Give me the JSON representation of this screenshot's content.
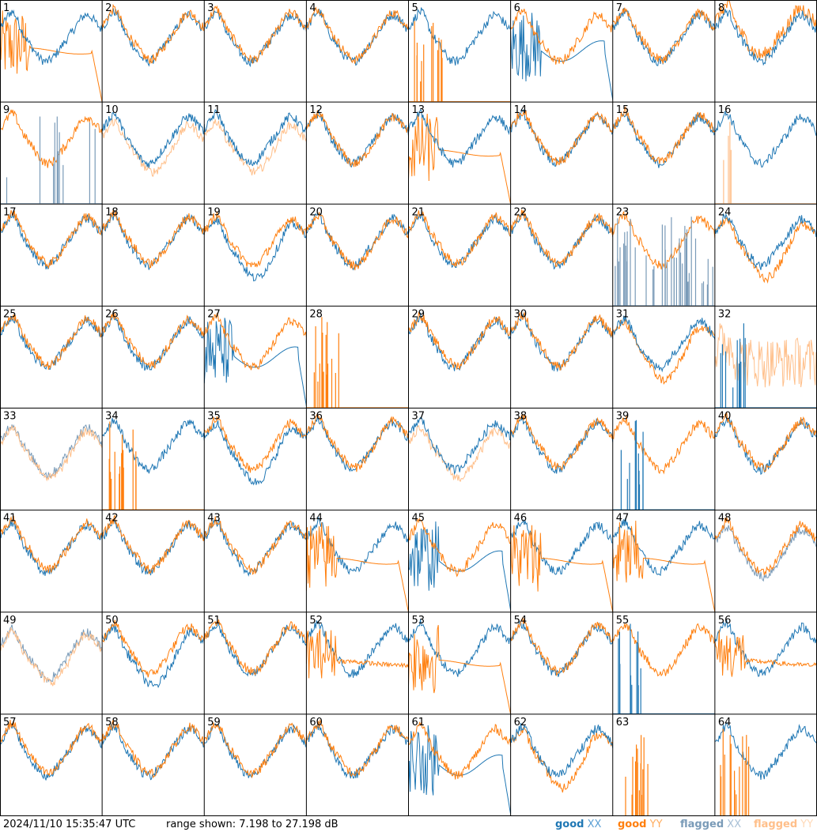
{
  "chart_data": {
    "type": "line",
    "layout": "small-multiples",
    "grid": "8x8",
    "panel_labels": [
      "1",
      "2",
      "3",
      "4",
      "5",
      "6",
      "7",
      "8",
      "9",
      "10",
      "11",
      "12",
      "13",
      "14",
      "15",
      "16",
      "17",
      "18",
      "19",
      "20",
      "21",
      "22",
      "23",
      "24",
      "25",
      "26",
      "27",
      "28",
      "29",
      "30",
      "31",
      "32",
      "33",
      "34",
      "35",
      "36",
      "37",
      "38",
      "39",
      "40",
      "41",
      "42",
      "43",
      "44",
      "45",
      "46",
      "47",
      "48",
      "49",
      "50",
      "51",
      "52",
      "53",
      "54",
      "55",
      "56",
      "57",
      "58",
      "59",
      "60",
      "61",
      "62",
      "63",
      "64"
    ],
    "ylim": [
      7.198,
      27.198
    ],
    "yunit": "dB",
    "series_styles": {
      "good_xx": {
        "name": "good XX",
        "color": "#1f77b4"
      },
      "good_yy": {
        "name": "good YY",
        "color": "#ff7f0e"
      },
      "flagged_xx": {
        "name": "flagged XX",
        "color": "#7a9bb8"
      },
      "flagged_yy": {
        "name": "flagged YY",
        "color": "#ffbf8a"
      }
    },
    "panel_types": {
      "1": [
        "yyDrop",
        "xx"
      ],
      "2": [
        "normal"
      ],
      "3": [
        "normal"
      ],
      "4": [
        "normal"
      ],
      "5": [
        "xx",
        "yySpike"
      ],
      "6": [
        "xxDrop",
        "yy"
      ],
      "7": [
        "normal"
      ],
      "8": [
        "yyHigh",
        "xx"
      ],
      "9": [
        "yy",
        "fxxSpike"
      ],
      "10": [
        "fyy",
        "xx"
      ],
      "11": [
        "fyy",
        "xx"
      ],
      "12": [
        "xx",
        "yy"
      ],
      "13": [
        "yyDrop",
        "xx"
      ],
      "14": [
        "normal"
      ],
      "15": [
        "normal"
      ],
      "16": [
        "xx",
        "fyySpike"
      ],
      "17": [
        "normal"
      ],
      "18": [
        "normal"
      ],
      "19": [
        "xxLow",
        "yy"
      ],
      "20": [
        "xx",
        "yy"
      ],
      "21": [
        "normal"
      ],
      "22": [
        "normal"
      ],
      "23": [
        "yy",
        "fxxNoise"
      ],
      "24": [
        "yyLow",
        "xx"
      ],
      "25": [
        "normal"
      ],
      "26": [
        "normal"
      ],
      "27": [
        "xxDrop",
        "yy"
      ],
      "28": [
        "yySpike"
      ],
      "29": [
        "normal"
      ],
      "30": [
        "normal"
      ],
      "31": [
        "yyLow",
        "xx"
      ],
      "32": [
        "fyyNoise",
        "xxSpike"
      ],
      "33": [
        "fxx",
        "fyy"
      ],
      "34": [
        "xx",
        "yySpike"
      ],
      "35": [
        "xxLow",
        "yy"
      ],
      "36": [
        "normal"
      ],
      "37": [
        "fyy",
        "xx"
      ],
      "38": [
        "normal"
      ],
      "39": [
        "yy",
        "xxSpike"
      ],
      "40": [
        "normal"
      ],
      "41": [
        "normal"
      ],
      "42": [
        "normal"
      ],
      "43": [
        "normal"
      ],
      "44": [
        "xx",
        "yyDrop"
      ],
      "45": [
        "xxDrop2",
        "yy"
      ],
      "46": [
        "xx",
        "yyDrop"
      ],
      "47": [
        "xx",
        "yyDrop"
      ],
      "48": [
        "fxx",
        "yy"
      ],
      "49": [
        "fxx",
        "fyy"
      ],
      "50": [
        "xxLow",
        "yy"
      ],
      "51": [
        "normal"
      ],
      "52": [
        "xx",
        "yyFlat"
      ],
      "53": [
        "xx",
        "yyDrop"
      ],
      "54": [
        "normal"
      ],
      "55": [
        "yy",
        "xxSpike"
      ],
      "56": [
        "xx",
        "yyFlat"
      ],
      "57": [
        "normal"
      ],
      "58": [
        "normal"
      ],
      "59": [
        "normal"
      ],
      "60": [
        "normal"
      ],
      "61": [
        "xxDrop",
        "yy"
      ],
      "62": [
        "yyLow",
        "xx"
      ],
      "63": [
        "yySpike"
      ],
      "64": [
        "xx",
        "yySpike"
      ]
    }
  },
  "footer": {
    "timestamp": "2024/11/10 15:35:47 UTC",
    "range": "range shown: 7.198 to 27.198 dB",
    "legend": {
      "good_xx_a": "good",
      "good_xx_b": "XX",
      "good_yy_a": "good",
      "good_yy_b": "YY",
      "flagged_xx_a": "flagged",
      "flagged_xx_b": "XX",
      "flagged_yy_a": "flagged",
      "flagged_yy_b": "YY"
    },
    "legend_colors": {
      "good_xx": "#1f77b4",
      "good_xx_light": "#5b9fd4",
      "good_yy": "#ff7f0e",
      "good_yy_light": "#ffad60",
      "flagged_xx": "#7a9bb8",
      "flagged_xx_light": "#a8c0d6",
      "flagged_yy": "#ffbf8a",
      "flagged_yy_light": "#ffd9b8"
    }
  }
}
